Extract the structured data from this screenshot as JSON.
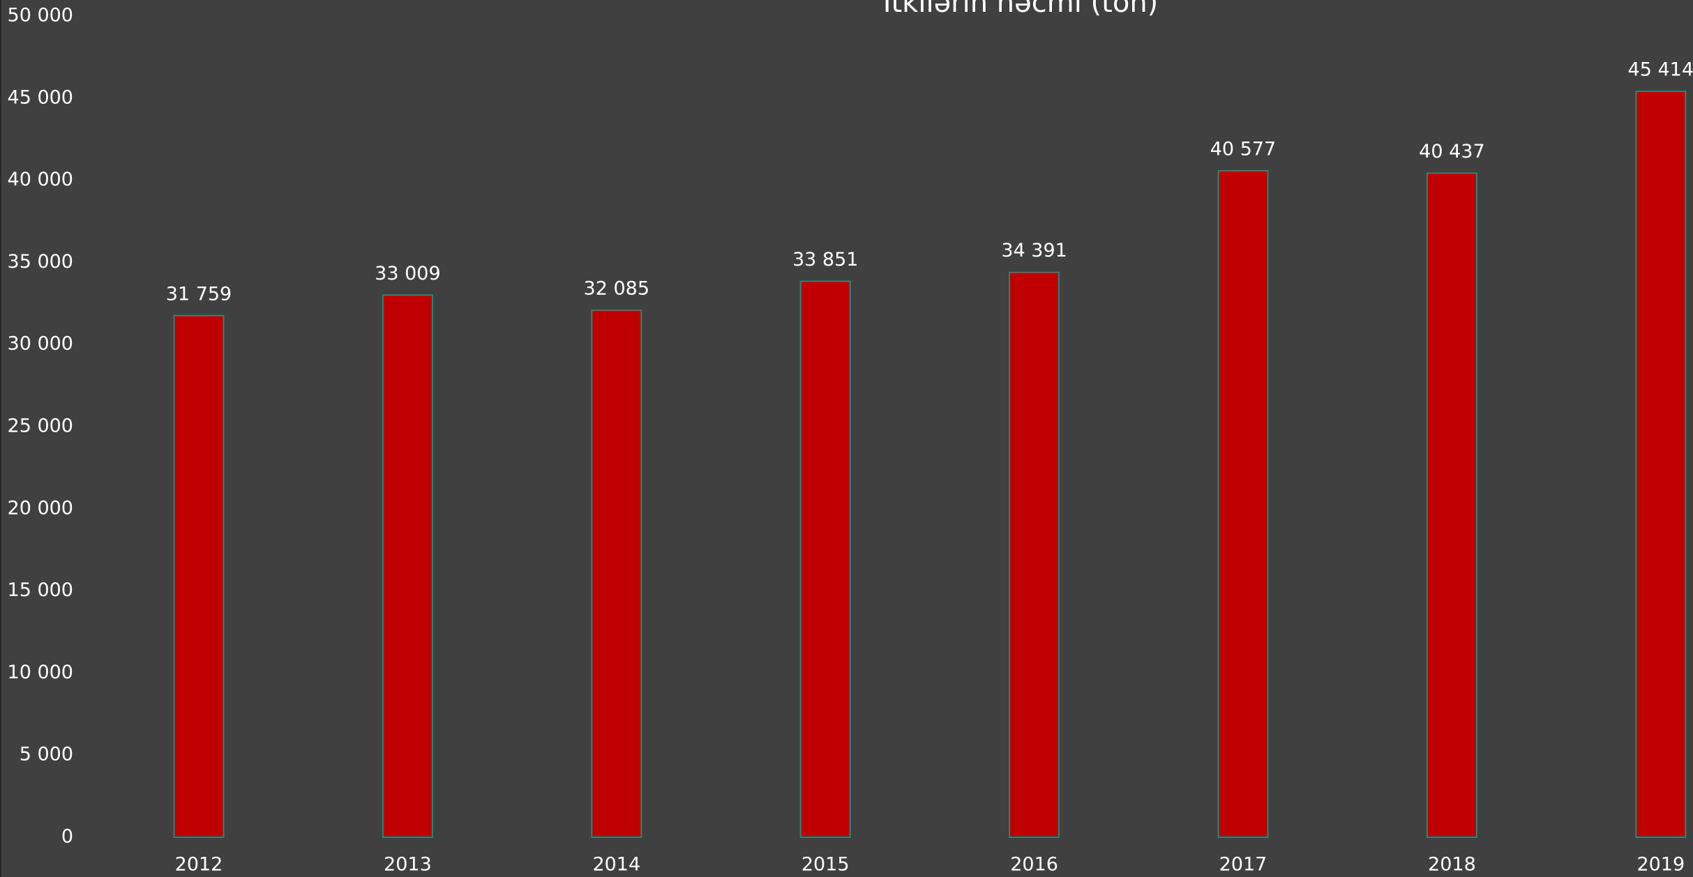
{
  "chart_data": {
    "type": "bar",
    "title": "İtkilərin həcmi (ton)",
    "categories": [
      "2012",
      "2013",
      "2014",
      "2015",
      "2016",
      "2017",
      "2018",
      "2019"
    ],
    "values": [
      31759,
      33009,
      32085,
      33851,
      34391,
      40577,
      40437,
      45414
    ],
    "value_labels": [
      "31 759",
      "33 009",
      "32 085",
      "33 851",
      "34 391",
      "40 577",
      "40 437",
      "45 414"
    ],
    "color": "#c00000",
    "ylim": [
      0,
      50000
    ],
    "yticks": [
      0,
      {
        "value": 5000,
        "label": "5 000"
      },
      {
        "value": 10000,
        "label": "10 000"
      },
      {
        "value": 15000,
        "label": "15 000"
      },
      {
        "value": 20000,
        "label": "20 000"
      },
      {
        "value": 25000,
        "label": "25 000"
      },
      {
        "value": 30000,
        "label": "30 000"
      },
      {
        "value": 35000,
        "label": "35 000"
      },
      {
        "value": 40000,
        "label": "40 000"
      },
      {
        "value": 45000,
        "label": "45 000"
      },
      {
        "value": 50000,
        "label": "50 000"
      }
    ],
    "grid": false
  }
}
